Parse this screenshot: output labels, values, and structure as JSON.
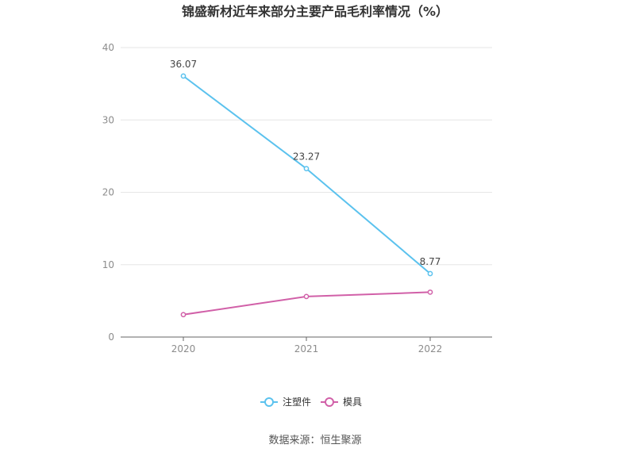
{
  "chart_data": {
    "type": "line",
    "title": "锦盛新材近年来部分主要产品毛利率情况（%）",
    "categories": [
      "2020",
      "2021",
      "2022"
    ],
    "ylim": [
      0,
      40
    ],
    "yticks": [
      0,
      10,
      20,
      30,
      40
    ],
    "grid": true,
    "legend_position": "bottom",
    "series": [
      {
        "name": "注塑件",
        "color": "#5bc2ee",
        "values": [
          36.07,
          23.27,
          8.77
        ],
        "labels": [
          "36.07",
          "23.27",
          "8.77"
        ]
      },
      {
        "name": "模具",
        "color": "#d160a8",
        "values": [
          3.1,
          5.6,
          6.2
        ],
        "labels": []
      }
    ]
  },
  "source_text": "数据来源：恒生聚源"
}
